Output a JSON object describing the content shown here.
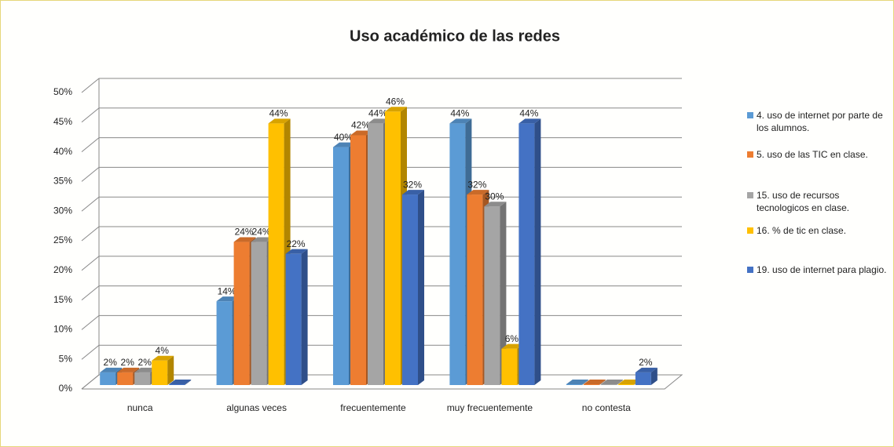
{
  "chart_data": {
    "type": "bar3d",
    "title": "Uso académico de las redes",
    "categories": [
      "nunca",
      "algunas veces",
      "frecuentemente",
      "muy frecuentemente",
      "no contesta"
    ],
    "series": [
      {
        "name": "4. uso de internet por parte de los alumnos.",
        "color": "#5b9bd5",
        "values": [
          2,
          14,
          40,
          44,
          0
        ],
        "value_labels": [
          "2%",
          "14%",
          "40%",
          "44%",
          null
        ]
      },
      {
        "name": "5. uso de las TIC en clase.",
        "color": "#ed7d31",
        "values": [
          2,
          24,
          42,
          32,
          0
        ],
        "value_labels": [
          "2%",
          "24%",
          "42%",
          "32%",
          null
        ]
      },
      {
        "name": "15. uso de recursos tecnologicos en clase.",
        "color": "#a5a5a5",
        "values": [
          2,
          24,
          44,
          30,
          0
        ],
        "value_labels": [
          "2%",
          "24%",
          "44%",
          "30%",
          null
        ]
      },
      {
        "name": "16. % de tic en clase.",
        "color": "#ffc000",
        "values": [
          4,
          44,
          46,
          6,
          0
        ],
        "value_labels": [
          "4%",
          "44%",
          "46%",
          "6%",
          null
        ]
      },
      {
        "name": "19. uso de internet para plagio.",
        "color": "#4472c4",
        "values": [
          0,
          22,
          32,
          44,
          2
        ],
        "value_labels": [
          null,
          "22%",
          "32%",
          "44%",
          "2%"
        ]
      }
    ],
    "ylim": [
      0,
      50
    ],
    "yticks": [
      {
        "value": 0,
        "label": "0%"
      },
      {
        "value": 5,
        "label": "5%"
      },
      {
        "value": 10,
        "label": "10%"
      },
      {
        "value": 15,
        "label": "15%"
      },
      {
        "value": 20,
        "label": "20%"
      },
      {
        "value": 25,
        "label": "25%"
      },
      {
        "value": 30,
        "label": "30%"
      },
      {
        "value": 35,
        "label": "35%"
      },
      {
        "value": 40,
        "label": "40%"
      },
      {
        "value": 45,
        "label": "45%"
      },
      {
        "value": 50,
        "label": "50%"
      }
    ],
    "grid": true,
    "legend": "right"
  }
}
